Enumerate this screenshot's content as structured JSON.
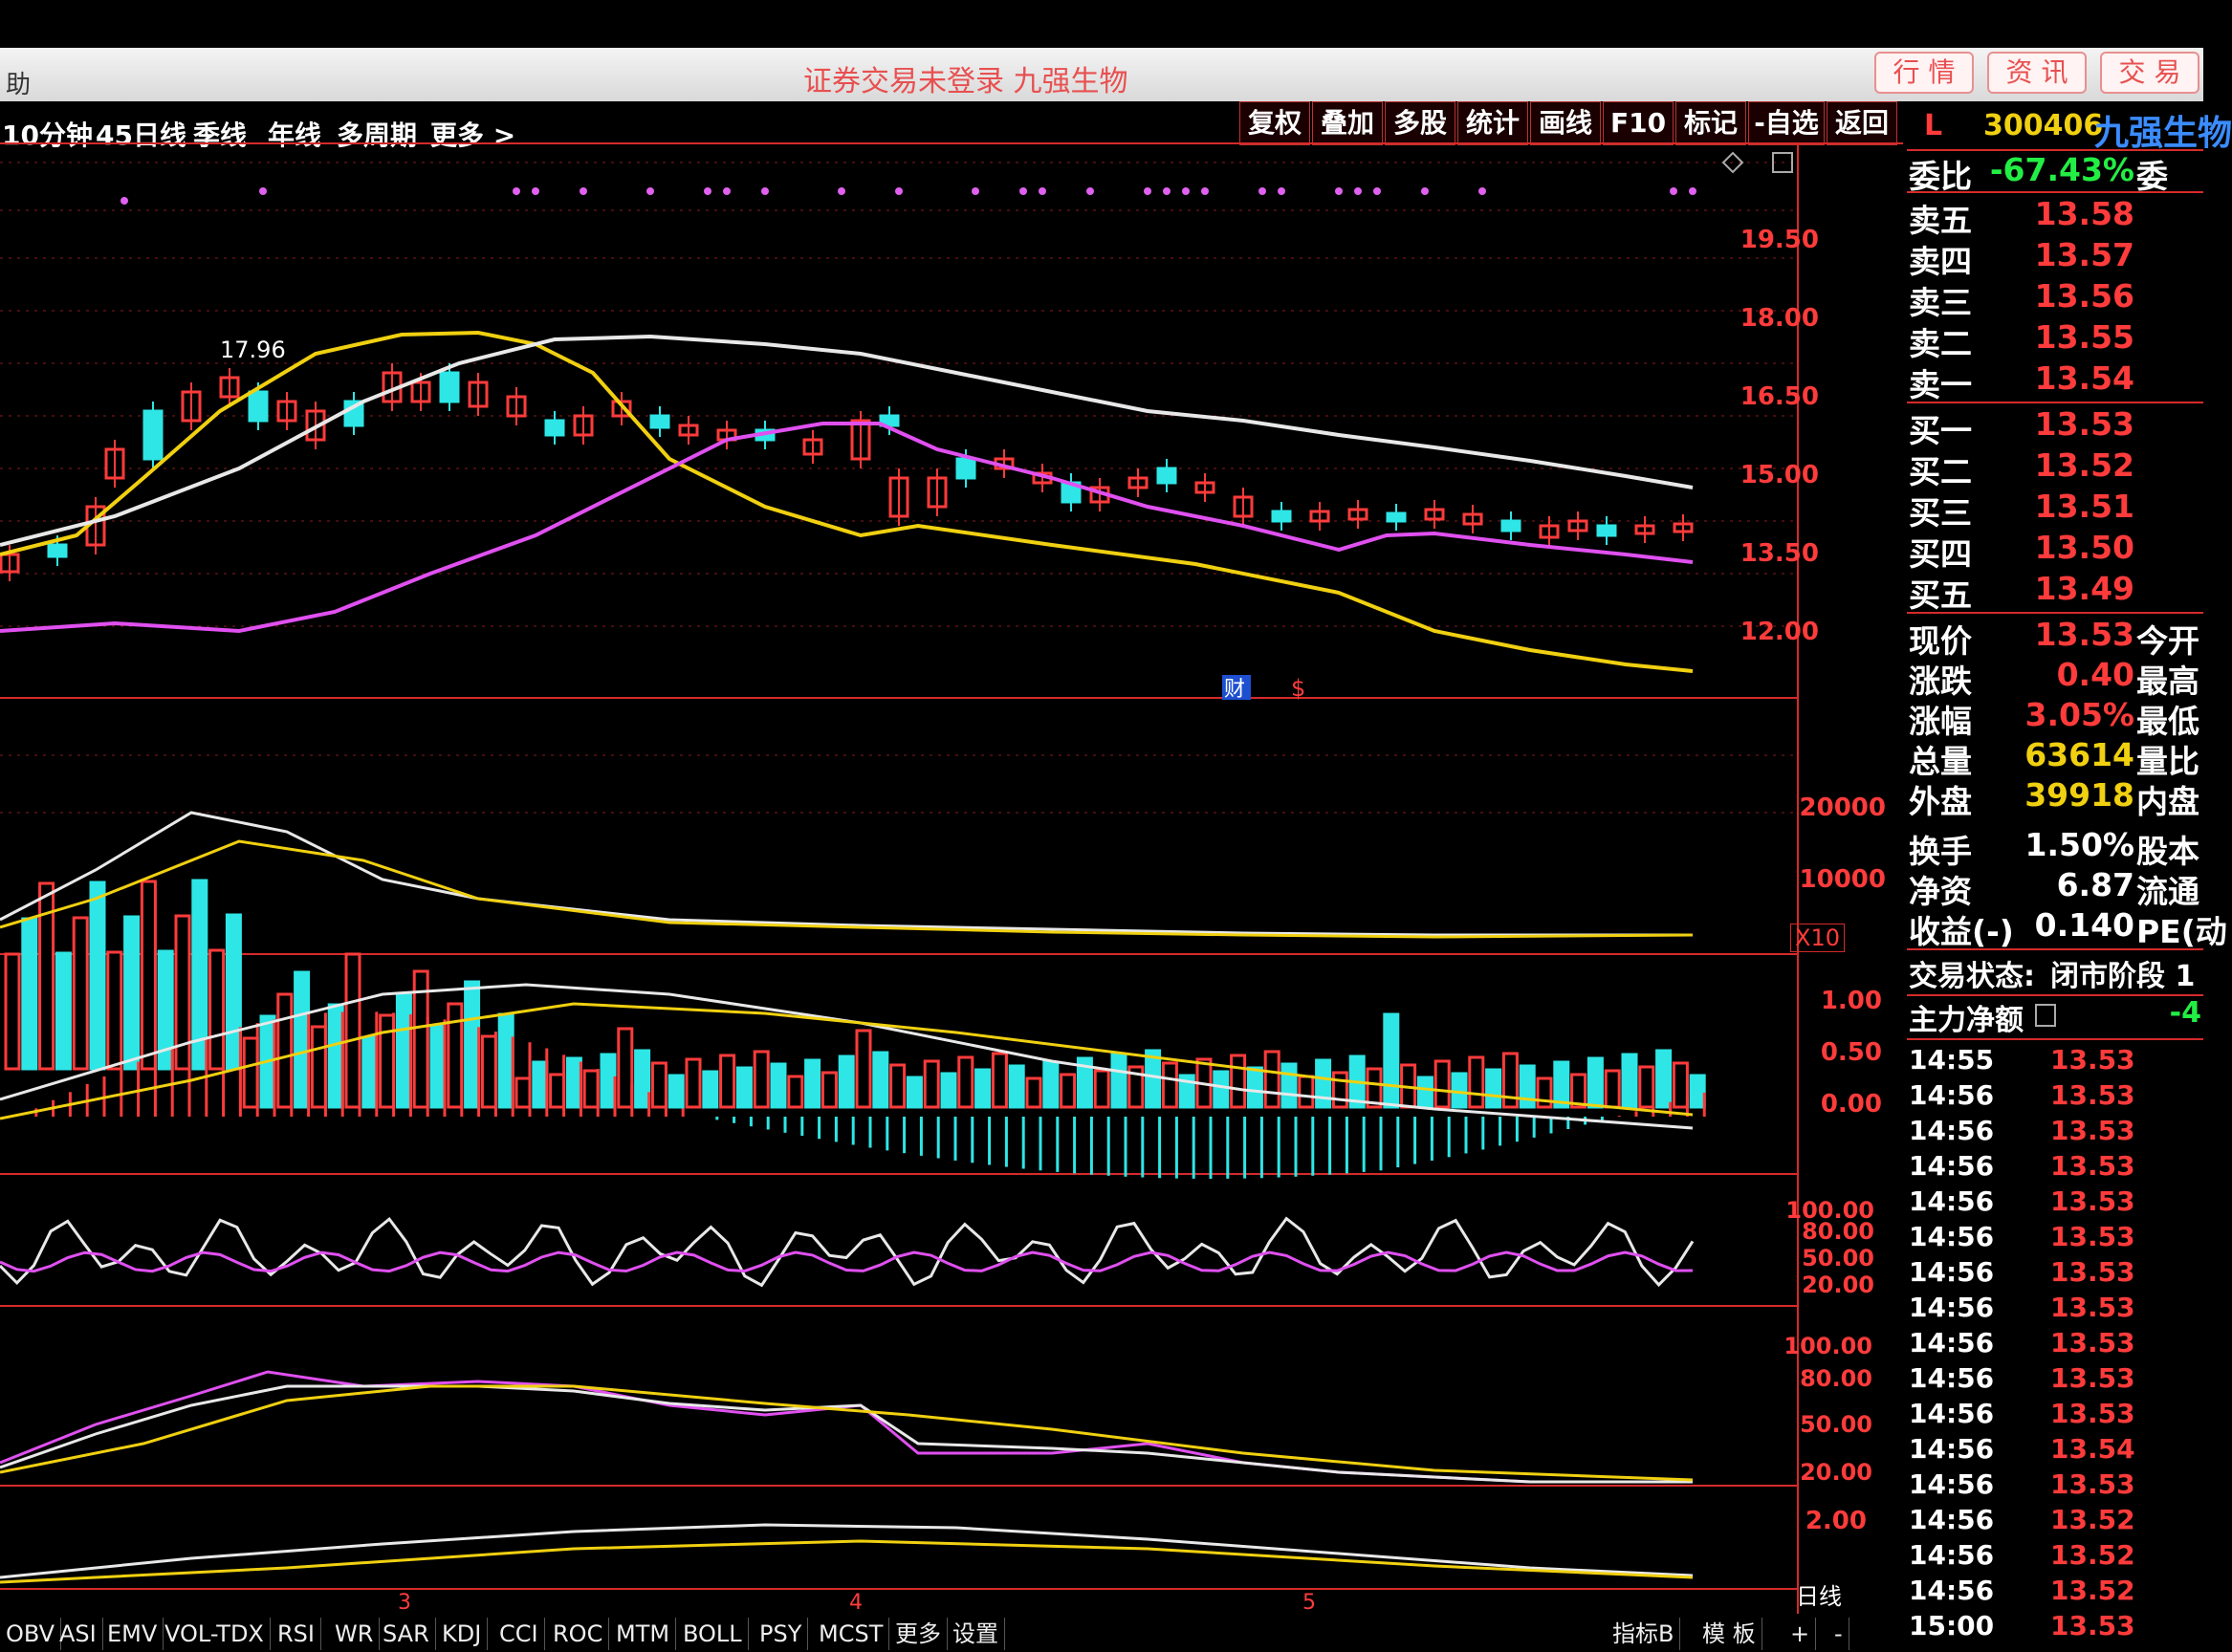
{
  "window": {
    "title_left": "助",
    "title_center": "证券交易未登录 九强生物",
    "title_buttons": [
      "行 情",
      "资 讯",
      "交 易"
    ]
  },
  "periods": [
    "10分钟",
    "45日线",
    "季线",
    "年线",
    "多周期",
    "更多 >"
  ],
  "toolbar": [
    "复权",
    "叠加",
    "多股",
    "统计",
    "画线",
    "F10",
    "标记",
    "-自选",
    "返回"
  ],
  "stock": {
    "code": "300406",
    "name": "九强生物",
    "prefix": "L"
  },
  "main_chart": {
    "price_labels": [
      "19.50",
      "18.00",
      "16.50",
      "15.00",
      "13.50",
      "12.00"
    ],
    "annotation": "17.96",
    "markers": [
      "财",
      "$"
    ]
  },
  "volume": {
    "labels": [
      "20000",
      "10000"
    ],
    "multiplier": "X10"
  },
  "macd": {
    "labels": [
      "1.00",
      "0.50",
      "0.00"
    ]
  },
  "osc1": {
    "labels": [
      "100.00",
      "80.00",
      "50.00",
      "20.00"
    ]
  },
  "osc2": {
    "labels": [
      "100.00",
      "80.00",
      "50.00",
      "20.00"
    ]
  },
  "obv": {
    "labels": [
      "2.00"
    ],
    "period": "日线"
  },
  "x_labels": [
    "3",
    "4",
    "5"
  ],
  "order_book": {
    "weibi_label": "委比",
    "weibi_value": "-67.43%",
    "weibi_ext": "委",
    "sell": [
      {
        "label": "卖五",
        "price": "13.58"
      },
      {
        "label": "卖四",
        "price": "13.57"
      },
      {
        "label": "卖三",
        "price": "13.56"
      },
      {
        "label": "卖二",
        "price": "13.55"
      },
      {
        "label": "卖一",
        "price": "13.54"
      }
    ],
    "buy": [
      {
        "label": "买一",
        "price": "13.53"
      },
      {
        "label": "买二",
        "price": "13.52"
      },
      {
        "label": "买三",
        "price": "13.51"
      },
      {
        "label": "买四",
        "price": "13.50"
      },
      {
        "label": "买五",
        "price": "13.49"
      }
    ]
  },
  "quote": [
    {
      "label": "现价",
      "value": "13.53",
      "ext": "今开"
    },
    {
      "label": "涨跌",
      "value": "0.40",
      "ext": "最高"
    },
    {
      "label": "涨幅",
      "value": "3.05%",
      "ext": "最低"
    },
    {
      "label": "总量",
      "value": "63614",
      "ext": "量比"
    },
    {
      "label": "外盘",
      "value": "39918",
      "ext": "内盘"
    },
    {
      "label": "换手",
      "value": "1.50%",
      "ext": "股本"
    },
    {
      "label": "净资",
      "value": "6.87",
      "ext": "流通"
    },
    {
      "label": "收益(-)",
      "value": "0.140",
      "ext": "PE(动"
    }
  ],
  "status": {
    "label": "交易状态:",
    "value": "闭市阶段 1"
  },
  "main_flow": {
    "label": "主力净额",
    "value": "-4"
  },
  "ticks": [
    {
      "t": "14:55",
      "p": "13.53"
    },
    {
      "t": "14:56",
      "p": "13.53"
    },
    {
      "t": "14:56",
      "p": "13.53"
    },
    {
      "t": "14:56",
      "p": "13.53"
    },
    {
      "t": "14:56",
      "p": "13.53"
    },
    {
      "t": "14:56",
      "p": "13.53"
    },
    {
      "t": "14:56",
      "p": "13.53"
    },
    {
      "t": "14:56",
      "p": "13.53"
    },
    {
      "t": "14:56",
      "p": "13.53"
    },
    {
      "t": "14:56",
      "p": "13.53"
    },
    {
      "t": "14:56",
      "p": "13.53"
    },
    {
      "t": "14:56",
      "p": "13.54"
    },
    {
      "t": "14:56",
      "p": "13.53"
    },
    {
      "t": "14:56",
      "p": "13.52"
    },
    {
      "t": "14:56",
      "p": "13.52"
    },
    {
      "t": "14:56",
      "p": "13.52"
    },
    {
      "t": "15:00",
      "p": "13.53"
    }
  ],
  "bottom_tabs": [
    "OBV",
    "ASI",
    "EMV",
    "VOL-TDX",
    "RSI",
    "WR",
    "SAR",
    "KDJ",
    "CCI",
    "ROC",
    "MTM",
    "BOLL",
    "PSY",
    "MCST",
    "更多",
    "设置"
  ],
  "bottom_right": [
    "指标B",
    "模 板",
    "+",
    "-"
  ],
  "colors": {
    "up": "#ff3b3b",
    "down": "#2ee6e6",
    "ma_yellow": "#f0d010",
    "ma_white": "#e8e8e8",
    "ma_magenta": "#e050f0",
    "grid": "#d62a2a"
  }
}
